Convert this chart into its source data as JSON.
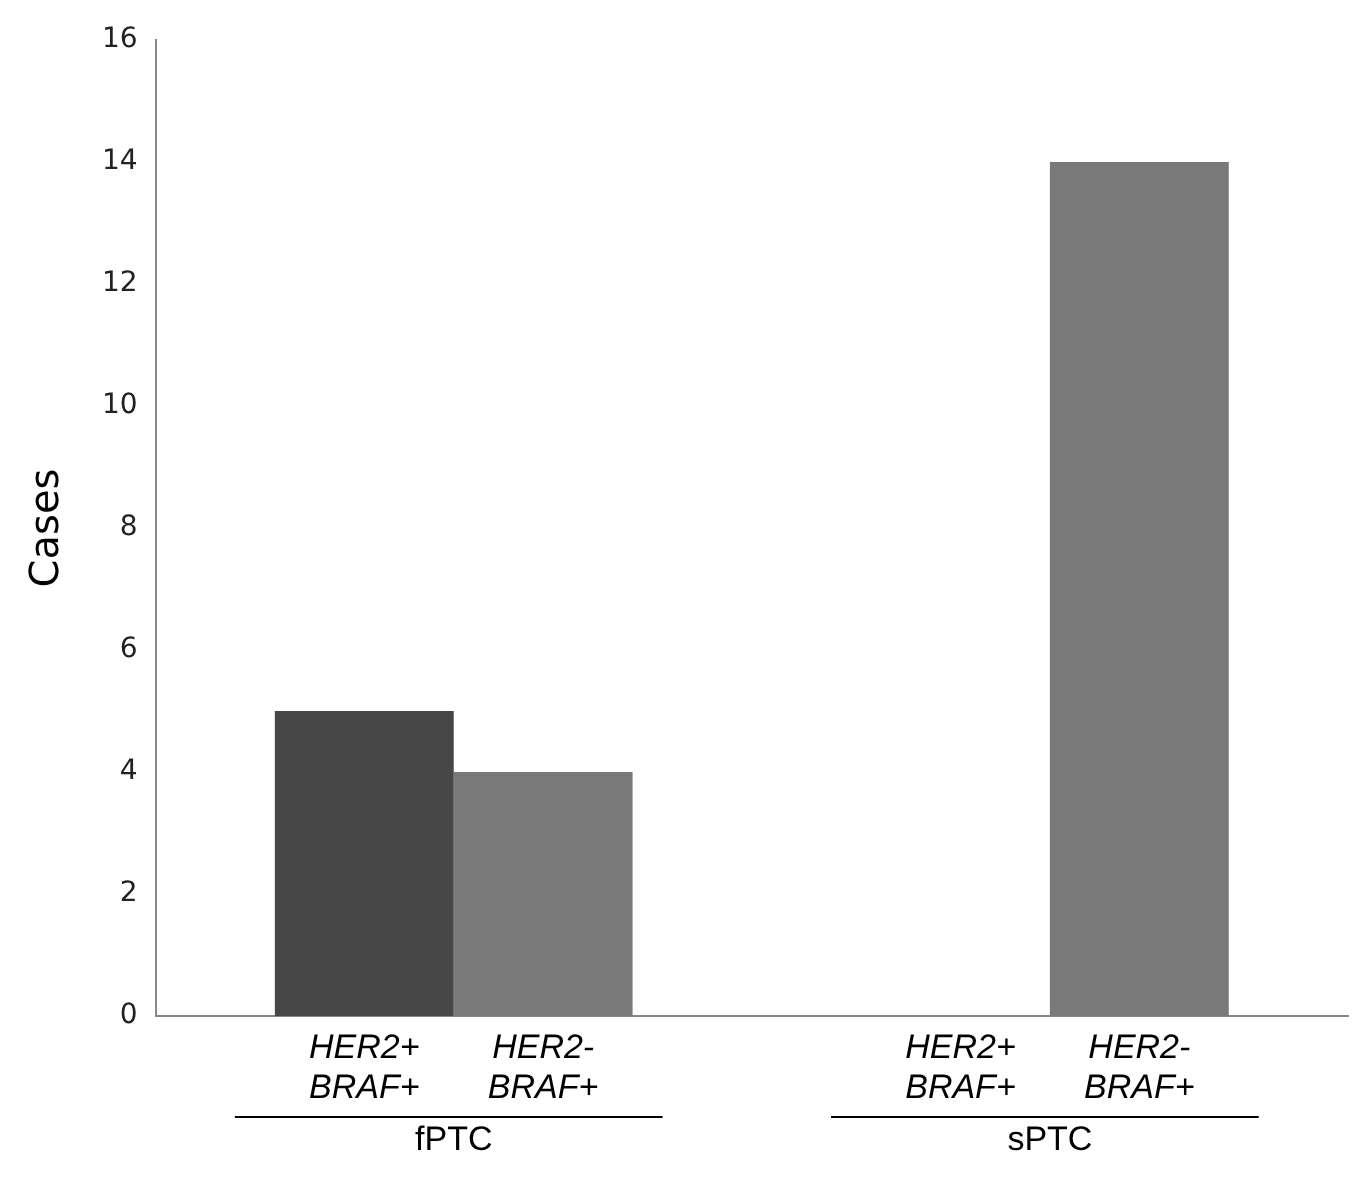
{
  "chart_data": {
    "type": "bar",
    "ylabel": "Cases",
    "categories": [
      "fPTC",
      "sPTC"
    ],
    "series": [
      {
        "name": "HER2+ BRAF+",
        "color": "#474747",
        "values": [
          5,
          0
        ]
      },
      {
        "name": "HER2- BRAF+",
        "color": "#797979",
        "values": [
          4,
          14
        ]
      }
    ],
    "ylim": [
      0,
      16
    ],
    "yticks": [
      0,
      2,
      4,
      6,
      8,
      10,
      12,
      14,
      16
    ],
    "grid": false,
    "legend": false
  }
}
